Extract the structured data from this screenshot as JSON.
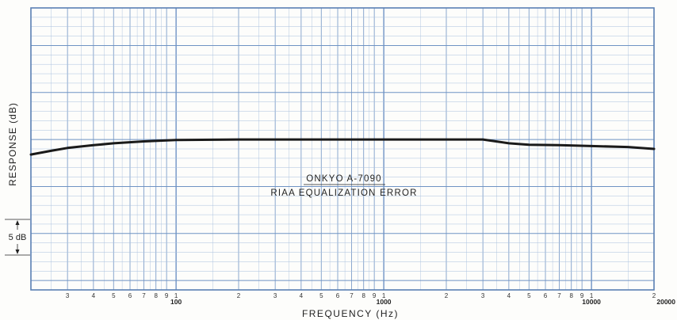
{
  "chart_data": {
    "type": "line",
    "title": "ONKYO A-7090",
    "subtitle": "RIAA EQUALIZATION ERROR",
    "xlabel": "FREQUENCY (Hz)",
    "ylabel": "RESPONSE (dB)",
    "x_scale": "log",
    "xlim": [
      20,
      20000
    ],
    "ylim": [
      -16,
      14
    ],
    "grid": true,
    "x_tick_labels": [
      {
        "value": 30,
        "label": "3"
      },
      {
        "value": 40,
        "label": "4"
      },
      {
        "value": 50,
        "label": "5"
      },
      {
        "value": 60,
        "label": "6"
      },
      {
        "value": 70,
        "label": "7"
      },
      {
        "value": 80,
        "label": "8"
      },
      {
        "value": 90,
        "label": "9"
      },
      {
        "value": 100,
        "label": "1"
      },
      {
        "value": 200,
        "label": "2"
      },
      {
        "value": 300,
        "label": "3"
      },
      {
        "value": 400,
        "label": "4"
      },
      {
        "value": 500,
        "label": "5"
      },
      {
        "value": 600,
        "label": "6"
      },
      {
        "value": 700,
        "label": "7"
      },
      {
        "value": 800,
        "label": "8"
      },
      {
        "value": 900,
        "label": "9"
      },
      {
        "value": 1000,
        "label": "1"
      },
      {
        "value": 2000,
        "label": "2"
      },
      {
        "value": 3000,
        "label": "3"
      },
      {
        "value": 4000,
        "label": "4"
      },
      {
        "value": 5000,
        "label": "5"
      },
      {
        "value": 6000,
        "label": "6"
      },
      {
        "value": 7000,
        "label": "7"
      },
      {
        "value": 8000,
        "label": "8"
      },
      {
        "value": 9000,
        "label": "9"
      },
      {
        "value": 10000,
        "label": "1"
      },
      {
        "value": 20000,
        "label": "2"
      }
    ],
    "x_major_labels": [
      {
        "value": 100,
        "label": "100"
      },
      {
        "value": 1000,
        "label": "1000"
      },
      {
        "value": 10000,
        "label": "10000"
      },
      {
        "value": 20000,
        "label": "20000"
      }
    ],
    "scale_marker": {
      "label": "5 dB",
      "from": -10,
      "to": -15
    },
    "series": [
      {
        "x": [
          20,
          25,
          30,
          40,
          50,
          70,
          100,
          200,
          500,
          1000,
          2000,
          3000,
          4000,
          5000,
          7000,
          10000,
          15000,
          20000
        ],
        "y": [
          -1.6,
          -1.2,
          -0.9,
          -0.6,
          -0.4,
          -0.2,
          -0.05,
          0,
          0,
          0,
          0,
          0,
          -0.4,
          -0.55,
          -0.6,
          -0.7,
          -0.8,
          -1.0
        ],
        "color": "#1a1a1a"
      }
    ]
  }
}
